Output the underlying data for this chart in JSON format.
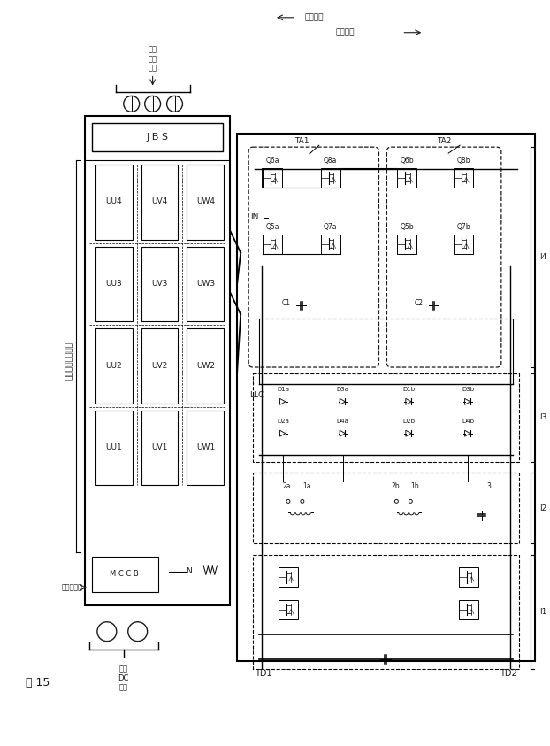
{
  "fig_width": 6.22,
  "fig_height": 8.43,
  "bg_color": "#ffffff",
  "line_color": "#1a1a1a",
  "labels": {
    "fig_title": "図 15",
    "height_dir": "高さ方向",
    "depth_dir": "奥行方向",
    "horizontal_label": "水平方向直列接続",
    "dc_input": "低圧\nDC\n入力",
    "ac_output": "低圧\n電源\n出力",
    "neutral": "中性点接続",
    "jbs": "J B S",
    "IN": "IN",
    "LLC": "LLC",
    "N": "N",
    "TA1": "TA1",
    "TA2": "TA2",
    "TD1": "TD1",
    "TD2": "TD2",
    "I1": "I1",
    "I2": "I2",
    "I3": "I3",
    "I4": "I4",
    "UU1": "UU1",
    "UV1": "UV1",
    "UW1": "UW1",
    "UU2": "UU2",
    "UV2": "UV2",
    "UW2": "UW2",
    "UU3": "UU3",
    "UV3": "UV3",
    "UW3": "UW3",
    "UU4": "UU4",
    "UV4": "UV4",
    "UW4": "UW4",
    "Q6a": "Q6a",
    "Q8a": "Q8a",
    "Q6b": "Q6b",
    "Q8b": "Q8b",
    "Q5a": "Q5a",
    "Q7a": "Q7a",
    "Q5b": "Q5b",
    "Q7b": "Q7b",
    "C1": "C1",
    "C2": "C2",
    "D1a": "D1a",
    "D2a": "D2a",
    "D3a": "D3a",
    "D4a": "D4a",
    "D1b": "D1b",
    "D2b": "D2b",
    "D3b": "D3b",
    "D4b": "D4b",
    "la1": "1a",
    "la2": "2a",
    "lb1": "1b",
    "lb2": "2b",
    "l3": "3",
    "MCCB": "M C C B"
  }
}
